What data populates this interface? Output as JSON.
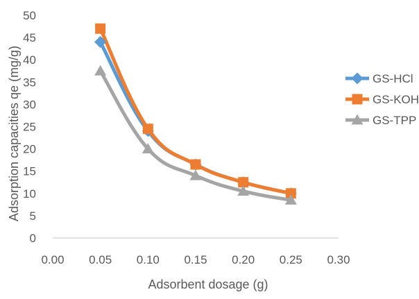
{
  "chart_data": {
    "type": "line",
    "title": "",
    "xlabel": "Adsorbent dosage (g)",
    "ylabel": "Adsorption capacities qe (mg/g)",
    "xlim": [
      0,
      0.3
    ],
    "ylim": [
      0,
      50
    ],
    "x_ticks": [
      "0.00",
      "0.05",
      "0.10",
      "0.15",
      "0.20",
      "0.25",
      "0.30"
    ],
    "y_ticks": [
      "0",
      "5",
      "10",
      "15",
      "20",
      "25",
      "30",
      "35",
      "40",
      "45",
      "50"
    ],
    "grid": false,
    "legend_position": "right",
    "smooth": true,
    "x": [
      0.05,
      0.1,
      0.15,
      0.2,
      0.25
    ],
    "series": [
      {
        "name": "GS-HCl",
        "values": [
          44,
          24,
          16.5,
          12.5,
          10
        ],
        "color": "#5B9BD5",
        "marker": "diamond"
      },
      {
        "name": "GS-KOH",
        "values": [
          47,
          24.5,
          16.5,
          12.5,
          10
        ],
        "color": "#ED7D31",
        "marker": "square"
      },
      {
        "name": "GS-TPP",
        "values": [
          37.5,
          20,
          14,
          10.5,
          8.5
        ],
        "color": "#A5A5A5",
        "marker": "triangle"
      }
    ],
    "axis_color": "#D9D9D9",
    "text_color": "#595959"
  }
}
